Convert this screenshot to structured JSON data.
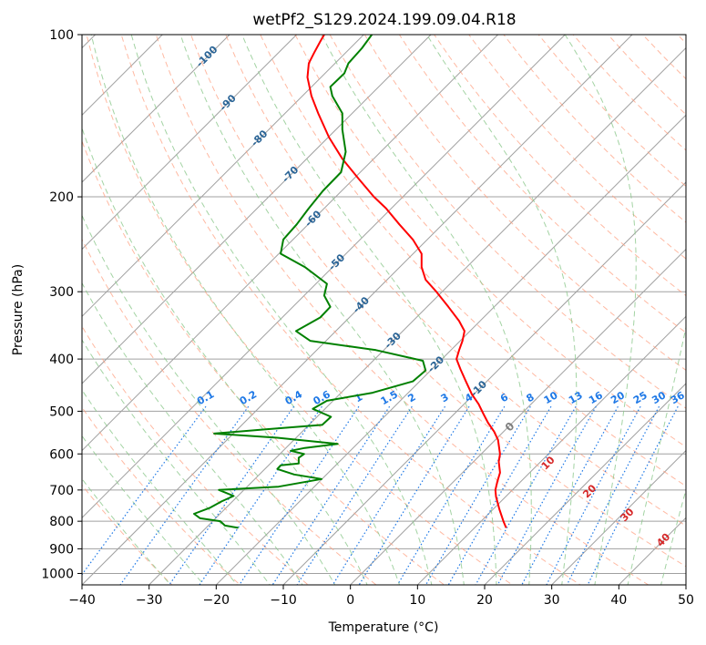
{
  "chart_data": {
    "type": "line",
    "subtype": "skew-t log-p diagram",
    "title": "wetPf2_S129.2024.199.09.04.R18",
    "xlabel": "Temperature (°C)",
    "ylabel": "Pressure (hPa)",
    "xlim": [
      -40,
      50
    ],
    "ylim": [
      1050,
      100
    ],
    "y_scale": "log",
    "x_ticks": [
      "−40",
      "−30",
      "−20",
      "−10",
      "0",
      "10",
      "20",
      "30",
      "40",
      "50"
    ],
    "y_ticks": [
      {
        "p": 100,
        "label": "100"
      },
      {
        "p": 200,
        "label": "200"
      },
      {
        "p": 300,
        "label": "300"
      },
      {
        "p": 400,
        "label": "400"
      },
      {
        "p": 500,
        "label": "500"
      },
      {
        "p": 600,
        "label": "600"
      },
      {
        "p": 700,
        "label": "700"
      },
      {
        "p": 800,
        "label": "800"
      },
      {
        "p": 900,
        "label": "900"
      },
      {
        "p": 1000,
        "label": "1000"
      }
    ],
    "grid": true,
    "colors": {
      "temperature": "#ff0000",
      "dewpoint": "#008000",
      "isotherm": "#a0a0a0",
      "dry_adiabat": "#ff9b7a",
      "moist_adiabat": "#8cc88c",
      "mixing_ratio": "#1e78e6",
      "isotherm_label": "#2a6496",
      "adiabat_label": "#d62728",
      "wetbulb_zero_label": "#808080"
    },
    "series": [
      {
        "name": "",
        "role": "temperature",
        "points": [
          [
            23.2,
            823
          ],
          [
            22.8,
            800
          ],
          [
            22.2,
            760
          ],
          [
            21.7,
            720
          ],
          [
            21.6,
            700
          ],
          [
            21.9,
            675
          ],
          [
            22.3,
            650
          ],
          [
            22.1,
            620
          ],
          [
            22.3,
            600
          ],
          [
            22.0,
            565
          ],
          [
            21.4,
            545
          ],
          [
            20.5,
            525
          ],
          [
            19.8,
            505
          ],
          [
            19.1,
            485
          ],
          [
            18.1,
            465
          ],
          [
            17.2,
            440
          ],
          [
            16.4,
            418
          ],
          [
            15.8,
            400
          ],
          [
            16.2,
            385
          ],
          [
            16.7,
            370
          ],
          [
            17.0,
            355
          ],
          [
            16.2,
            340
          ],
          [
            14.6,
            320
          ],
          [
            12.8,
            300
          ],
          [
            11.2,
            285
          ],
          [
            10.6,
            270
          ],
          [
            10.6,
            255
          ],
          [
            9.3,
            240
          ],
          [
            7.3,
            225
          ],
          [
            5.3,
            210
          ],
          [
            3.5,
            200
          ],
          [
            1.2,
            185
          ],
          [
            -1.2,
            170
          ],
          [
            -3.2,
            155
          ],
          [
            -4.8,
            140
          ],
          [
            -5.8,
            130
          ],
          [
            -6.4,
            120
          ],
          [
            -6.2,
            113
          ],
          [
            -5.4,
            108
          ],
          [
            -4.5,
            103
          ],
          [
            -3.9,
            100
          ]
        ]
      },
      {
        "name": "",
        "role": "dewpoint",
        "points": [
          [
            -16.7,
            823
          ],
          [
            -18.7,
            815
          ],
          [
            -19.4,
            800
          ],
          [
            -22.4,
            790
          ],
          [
            -23.3,
            775
          ],
          [
            -20.9,
            755
          ],
          [
            -19.2,
            735
          ],
          [
            -17.4,
            718
          ],
          [
            -19.6,
            700
          ],
          [
            -10.7,
            690
          ],
          [
            -4.3,
            668
          ],
          [
            -8.4,
            655
          ],
          [
            -10.9,
            640
          ],
          [
            -10.4,
            630
          ],
          [
            -7.7,
            625
          ],
          [
            -7.7,
            610
          ],
          [
            -6.9,
            600
          ],
          [
            -8.9,
            592
          ],
          [
            -6.8,
            585
          ],
          [
            -1.9,
            575
          ],
          [
            -10.9,
            560
          ],
          [
            -20.3,
            550
          ],
          [
            -12.6,
            540
          ],
          [
            -4.2,
            530
          ],
          [
            -2.9,
            512
          ],
          [
            -5.6,
            495
          ],
          [
            -3.5,
            478
          ],
          [
            3.3,
            462
          ],
          [
            9.3,
            440
          ],
          [
            11.2,
            420
          ],
          [
            10.8,
            403
          ],
          [
            3.8,
            385
          ],
          [
            -6.0,
            370
          ],
          [
            -8.1,
            355
          ],
          [
            -4.5,
            335
          ],
          [
            -3.0,
            320
          ],
          [
            -3.9,
            305
          ],
          [
            -3.5,
            290
          ],
          [
            -6.8,
            270
          ],
          [
            -10.4,
            255
          ],
          [
            -10.0,
            240
          ],
          [
            -8.0,
            225
          ],
          [
            -6.2,
            210
          ],
          [
            -4.1,
            195
          ],
          [
            -1.4,
            180
          ],
          [
            -0.7,
            165
          ],
          [
            -1.2,
            150
          ],
          [
            -1.2,
            140
          ],
          [
            -2.7,
            130
          ],
          [
            -3.0,
            125
          ],
          [
            -0.9,
            118
          ],
          [
            -0.3,
            113
          ],
          [
            1.7,
            106
          ],
          [
            3.2,
            100
          ]
        ]
      }
    ],
    "isotherm_labels": [
      "-100",
      "-90",
      "-80",
      "-70",
      "-60",
      "-50",
      "-40",
      "-30",
      "-20",
      "-10"
    ],
    "mixing_ratio_labels": [
      "0.1",
      "0.2",
      "0.4",
      "0.6",
      "1",
      "1.5",
      "2",
      "3",
      "4",
      "6",
      "8",
      "10",
      "13",
      "16",
      "20",
      "25",
      "30",
      "36"
    ],
    "dry_adiabat_labels": [
      "10",
      "20",
      "30",
      "40"
    ],
    "wetbulb_zero_label": "0"
  }
}
